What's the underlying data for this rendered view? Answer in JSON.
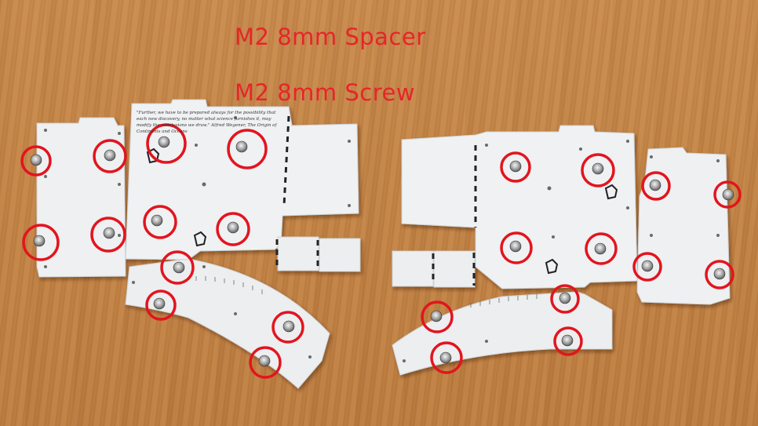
{
  "labels": {
    "spacer": "M2 8mm Spacer",
    "screw": "M2 8mm Screw"
  },
  "plate_quote": "\"Further, we have to be prepared always for the possibility that each new discovery, no matter what science furnishes it, may modify the conclusions we draw.\" Alfred Wegener, The Origin of Continents and Oceans",
  "colors": {
    "label": "#e8242a",
    "circle": "#e3141e",
    "plate": "#eef0f2",
    "wood": "#c48546"
  },
  "callout_count": 23
}
